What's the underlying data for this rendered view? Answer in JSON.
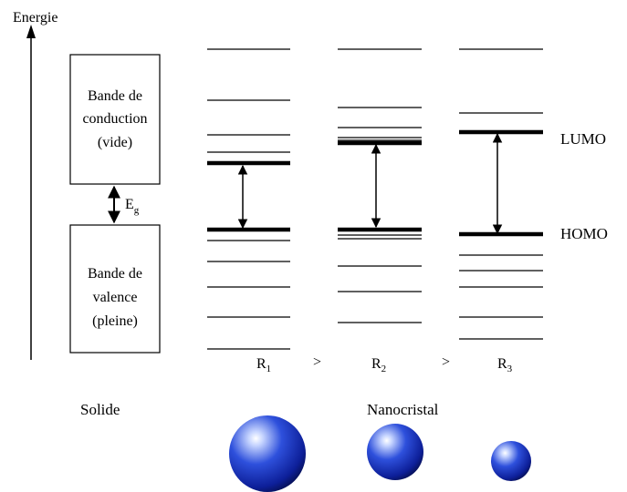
{
  "axis": {
    "label": "Energie"
  },
  "solid": {
    "conduction_band": [
      "Bande de",
      "conduction",
      "(vide)"
    ],
    "valence_band": [
      "Bande de",
      "valence",
      "(pleine)"
    ],
    "gap_symbol": "E",
    "gap_subscript": "g",
    "caption": "Solide"
  },
  "nanocrystal": {
    "caption": "Nanocristal",
    "lumo_label": "LUMO",
    "homo_label": "HOMO",
    "sizes": [
      {
        "symbol": "R",
        "subscript": "1"
      },
      {
        "symbol": "R",
        "subscript": "2"
      },
      {
        "symbol": "R",
        "subscript": "3"
      }
    ],
    "comparators": [
      ">",
      ">"
    ]
  }
}
